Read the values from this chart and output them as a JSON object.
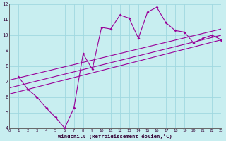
{
  "title": "",
  "xlabel": "Windchill (Refroidissement éolien,°C)",
  "ylabel": "",
  "xlim": [
    0,
    23
  ],
  "ylim": [
    4,
    12
  ],
  "yticks": [
    4,
    5,
    6,
    7,
    8,
    9,
    10,
    11,
    12
  ],
  "xticks": [
    0,
    1,
    2,
    3,
    4,
    5,
    6,
    7,
    8,
    9,
    10,
    11,
    12,
    13,
    14,
    15,
    16,
    17,
    18,
    19,
    20,
    21,
    22,
    23
  ],
  "bg_color": "#c8eef0",
  "grid_color": "#a0d8e0",
  "line_color": "#990099",
  "series1_x": [
    1,
    2,
    3,
    4,
    5,
    6,
    7,
    8,
    9,
    10,
    11,
    12,
    13,
    14,
    15,
    16,
    17,
    18,
    19,
    20,
    21,
    22,
    23
  ],
  "series1_y": [
    7.3,
    6.5,
    6.0,
    5.3,
    4.7,
    4.0,
    5.3,
    8.8,
    7.8,
    10.5,
    10.4,
    11.3,
    11.1,
    9.8,
    11.5,
    11.8,
    10.8,
    10.3,
    10.2,
    9.5,
    9.8,
    10.0,
    9.7
  ],
  "reg_lines": [
    [
      6.2,
      9.7
    ],
    [
      6.6,
      10.0
    ],
    [
      7.1,
      10.4
    ]
  ]
}
